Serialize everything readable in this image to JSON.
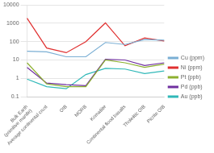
{
  "chart_data": {
    "type": "line",
    "categories": [
      "Bulk Earth\n(primitive mantle)",
      "Average continental crust",
      "OIB",
      "MORB",
      "Komatiite",
      "Continental flood basalts",
      "Tholeiitic OIB",
      "Picrite OIB"
    ],
    "series": [
      {
        "name": "Cu (ppm)",
        "color": "#7bafd4",
        "values": [
          30,
          28,
          15,
          15,
          90,
          70,
          130,
          120
        ]
      },
      {
        "name": "Ni (ppm)",
        "color": "#e03030",
        "values": [
          1900,
          45,
          25,
          100,
          1050,
          60,
          160,
          110
        ]
      },
      {
        "name": "Pt (ppb)",
        "color": "#8db030",
        "values": [
          7,
          0.5,
          0.35,
          0.35,
          10,
          7,
          4,
          6
        ]
      },
      {
        "name": "Pd (ppb)",
        "color": "#7030a0",
        "values": [
          3.9,
          0.55,
          0.45,
          0.4,
          11,
          10,
          5,
          7
        ]
      },
      {
        "name": "Au (ppb)",
        "color": "#30b8b8",
        "values": [
          0.9,
          0.35,
          0.27,
          1.6,
          3.5,
          3.2,
          1.8,
          2.5
        ]
      }
    ],
    "log": "y",
    "ylim": [
      0.1,
      10000
    ],
    "yticks": [
      0.1,
      1,
      10,
      100,
      1000,
      10000
    ],
    "grid": true,
    "legend": "right"
  }
}
